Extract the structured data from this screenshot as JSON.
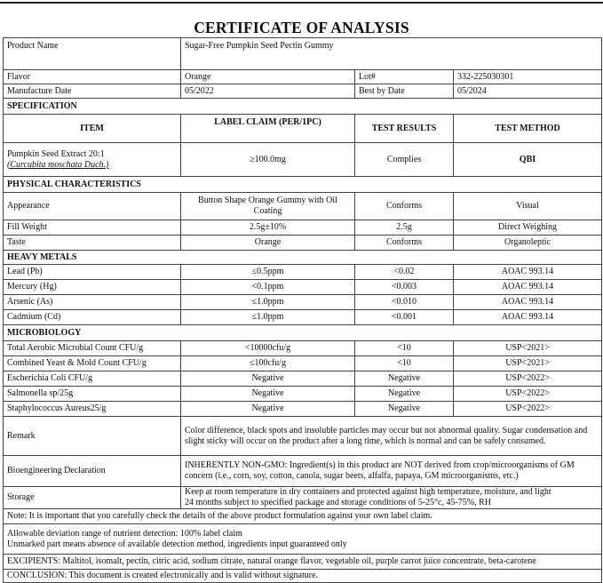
{
  "title": "CERTIFICATE OF ANALYSIS",
  "product": {
    "product_name_label": "Product Name",
    "product_name": "Sugar-Free Pumpkin Seed Pectin Gummy",
    "flavor_label": "Flavor",
    "flavor": "Orange",
    "lot_label": "Lot#",
    "lot": "332-225030301",
    "manufacture_date_label": "Manufacture Date",
    "manufacture_date": "05/2022",
    "best_by_label": "Best by Date",
    "best_by": "05/2024"
  },
  "specification": {
    "heading": "SPECIFICATION",
    "columns": [
      "ITEM",
      "LABEL CLAIM (PER/1PC)",
      "TEST RESULTS",
      "TEST METHOD"
    ],
    "rows": [
      {
        "item": "Pumpkin Seed Extract 20:1",
        "item_latin": "(Curcubita moschata Duch.)",
        "claim": "≥100.0mg",
        "result": "Complies",
        "method": "QBI"
      }
    ]
  },
  "physical": {
    "heading": "PHYSICAL CHARACTERISTICS",
    "rows": [
      {
        "item": "Appearance",
        "claim": "Button Shape Orange Gummy with Oil Coating",
        "result": "Conforms",
        "method": "Visual"
      },
      {
        "item": "Fill Weight",
        "claim": "2.5g±10%",
        "result": "2.5g",
        "method": "Direct Weighing"
      },
      {
        "item": "Taste",
        "claim": "Orange",
        "result": "Conforms",
        "method": "Organoleptic"
      }
    ]
  },
  "heavy_metals": {
    "heading": "HEAVY METALS",
    "rows": [
      {
        "item": "Lead (Pb)",
        "claim": "≤0.5ppm",
        "result": "<0.02",
        "method": "AOAC 993.14"
      },
      {
        "item": "Mercury (Hg)",
        "claim": "<0.1ppm",
        "result": "<0.003",
        "method": "AOAC 993.14"
      },
      {
        "item": "Arsenic (As)",
        "claim": "≤1.0ppm",
        "result": "<0.010",
        "method": "AOAC 993.14"
      },
      {
        "item": "Cadmium (Cd)",
        "claim": "≤1.0ppm",
        "result": "<0.001",
        "method": "AOAC 993.14"
      }
    ]
  },
  "microbiology": {
    "heading": "MICROBIOLOGY",
    "rows": [
      {
        "item": "Total Aerobic Microbial Count CFU/g",
        "claim": "<10000cfu/g",
        "result": "<10",
        "method": "USP<2021>"
      },
      {
        "item": "Combined Yeast & Mold Count CFU/g",
        "claim": "≤100cfu/g",
        "result": "<10",
        "method": "USP<2021>"
      },
      {
        "item": "Escherichia Coli CFU/g",
        "claim": "Negative",
        "result": "Negative",
        "method": "USP<2022>"
      },
      {
        "item": "Salmonella sp/25g",
        "claim": "Negative",
        "result": "Negative",
        "method": "USP<2022>"
      },
      {
        "item": "Staphylococcus Aureus25/g",
        "claim": "Negative",
        "result": "Negative",
        "method": "USP<2022>"
      }
    ]
  },
  "remark": {
    "label": "Remark",
    "text": "Color difference, black spots and insoluble particles may occur but not abnormal quality. Sugar condensation and slight sticky will occur on the product after a long time, which is normal and can be safely consumed."
  },
  "bioengineering": {
    "label": "Bioengineering Declaration",
    "text": "INHERENTLY NON-GMO: Ingredient(s) in this product are NOT derived from crop/microorganisms of GM concern (i.e., corn, soy, cotton, canola, sugar beets, alfalfa, papaya, GM microorganisms, etc.)"
  },
  "storage": {
    "label": "Storage",
    "line1": "Keep at room temperature in dry containers and protected against high temperature, moisture, and light",
    "line2": "24 months subject to specified package and storage conditions of 5-25°c, 45-75%, RH"
  },
  "note": "Note: It is important that you carefully check the details of the above product formulation against your own label claim.",
  "allowable": {
    "line1": "Allowable deviation range of nutrient detection: 100% label claim",
    "line2": "Unmarked part means absence of available detection method, ingredients input guaranteed only"
  },
  "excipients": "EXCIPIENTS: Maltitol, isomalt, pectin, citric acid, sodium citrate, natural orange flavor, vegetable oil, purple carrot juice concentrate, beta-carotene",
  "conclusion": "CONCLUSION: This document is created electronically and is valid without signature."
}
